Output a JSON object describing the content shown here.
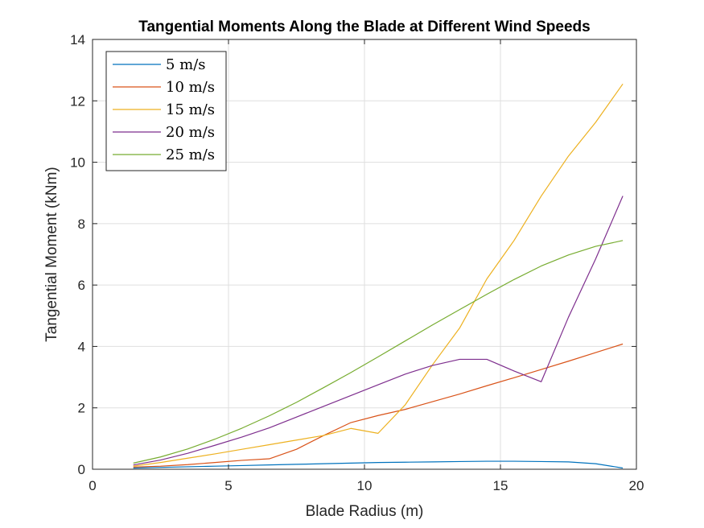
{
  "chart_data": {
    "type": "line",
    "title": "Tangential Moments Along the Blade at Different Wind Speeds",
    "xlabel": "Blade Radius (m)",
    "ylabel": "Tangential Moment (kNm)",
    "xlim": [
      0,
      20
    ],
    "ylim": [
      0,
      14
    ],
    "xticks": [
      0,
      5,
      10,
      15,
      20
    ],
    "yticks": [
      0,
      2,
      4,
      6,
      8,
      10,
      12,
      14
    ],
    "grid": true,
    "legend_position": "top-left",
    "x": [
      1.5,
      2.5,
      3.5,
      4.5,
      5.5,
      6.5,
      7.5,
      8.5,
      9.5,
      10.5,
      11.5,
      12.5,
      13.5,
      14.5,
      15.5,
      16.5,
      17.5,
      18.5,
      19.5
    ],
    "series": [
      {
        "name": "5 m/s",
        "color": "#0072BD",
        "values": [
          0.04,
          0.06,
          0.08,
          0.1,
          0.12,
          0.14,
          0.16,
          0.18,
          0.2,
          0.22,
          0.23,
          0.24,
          0.25,
          0.26,
          0.26,
          0.25,
          0.24,
          0.18,
          0.04
        ]
      },
      {
        "name": "10 m/s",
        "color": "#D95319",
        "values": [
          0.07,
          0.1,
          0.15,
          0.22,
          0.29,
          0.34,
          0.65,
          1.1,
          1.52,
          1.75,
          1.95,
          2.2,
          2.45,
          2.72,
          2.98,
          3.25,
          3.52,
          3.8,
          4.08
        ]
      },
      {
        "name": "15 m/s",
        "color": "#EDB120",
        "values": [
          0.1,
          0.22,
          0.36,
          0.5,
          0.65,
          0.8,
          0.95,
          1.1,
          1.33,
          1.17,
          2.1,
          3.4,
          4.6,
          6.2,
          7.45,
          8.9,
          10.2,
          11.3,
          12.55
        ]
      },
      {
        "name": "20 m/s",
        "color": "#7E2F8E",
        "values": [
          0.14,
          0.3,
          0.52,
          0.78,
          1.05,
          1.35,
          1.7,
          2.05,
          2.4,
          2.75,
          3.1,
          3.38,
          3.58,
          3.58,
          3.2,
          2.85,
          4.95,
          6.85,
          8.9
        ]
      },
      {
        "name": "25 m/s",
        "color": "#77AC30",
        "values": [
          0.2,
          0.4,
          0.66,
          0.98,
          1.34,
          1.74,
          2.18,
          2.66,
          3.15,
          3.66,
          4.18,
          4.7,
          5.2,
          5.7,
          6.18,
          6.62,
          6.98,
          7.26,
          7.45
        ]
      }
    ]
  }
}
